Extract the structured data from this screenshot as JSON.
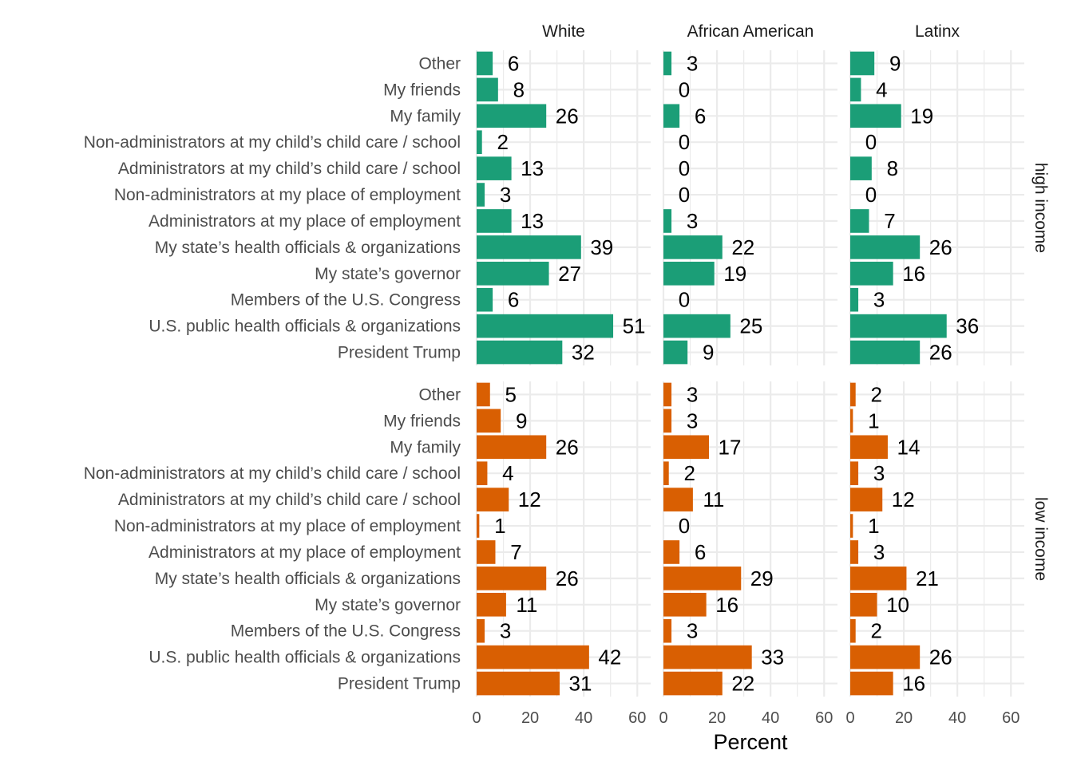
{
  "chart_data": {
    "type": "bar",
    "orientation": "horizontal",
    "facets": {
      "columns": [
        "White",
        "African American",
        "Latinx"
      ],
      "rows": [
        "high income",
        "low income"
      ]
    },
    "categories": [
      "Other",
      "My friends",
      "My family",
      "Non-administrators at my child’s child care / school",
      "Administrators at my child’s child care / school",
      "Non-administrators at my place of employment",
      "Administrators at my place of employment",
      "My state’s health officials & organizations",
      "My state’s governor",
      "Members of the U.S. Congress",
      "U.S. public health officials & organizations",
      "President Trump"
    ],
    "series": [
      {
        "group": "high income",
        "color": "#1b9e77",
        "panels": [
          {
            "column": "White",
            "values": [
              6,
              8,
              26,
              2,
              13,
              3,
              13,
              39,
              27,
              6,
              51,
              32
            ]
          },
          {
            "column": "African American",
            "values": [
              3,
              0,
              6,
              0,
              0,
              0,
              3,
              22,
              19,
              0,
              25,
              9
            ]
          },
          {
            "column": "Latinx",
            "values": [
              9,
              4,
              19,
              0,
              8,
              0,
              7,
              26,
              16,
              3,
              36,
              26
            ]
          }
        ]
      },
      {
        "group": "low income",
        "color": "#d95f02",
        "panels": [
          {
            "column": "White",
            "values": [
              5,
              9,
              26,
              4,
              12,
              1,
              7,
              26,
              11,
              3,
              42,
              31
            ]
          },
          {
            "column": "African American",
            "values": [
              3,
              3,
              17,
              2,
              11,
              0,
              6,
              29,
              16,
              3,
              33,
              22
            ]
          },
          {
            "column": "Latinx",
            "values": [
              2,
              1,
              14,
              3,
              12,
              1,
              3,
              21,
              10,
              2,
              26,
              16
            ]
          }
        ]
      }
    ],
    "xlabel": "Percent",
    "ylabel": "",
    "xlim": [
      0,
      65
    ],
    "xticks": [
      0,
      20,
      40,
      60
    ],
    "grid": true,
    "legend": "none"
  }
}
